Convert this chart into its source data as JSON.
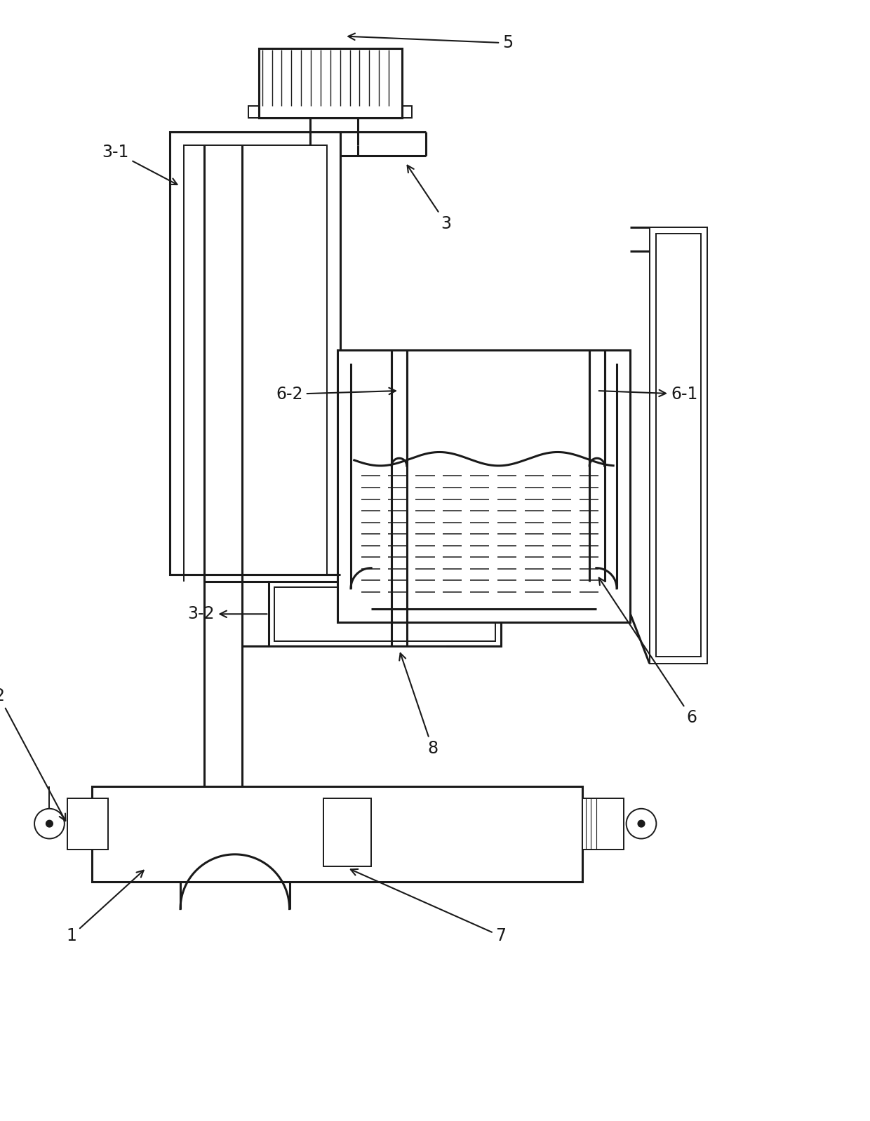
{
  "bg": "#ffffff",
  "lc": "#1a1a1a",
  "lw": 2.2,
  "lw2": 1.4,
  "fs": 17,
  "fig_w": 12.4,
  "fig_h": 15.98,
  "dpi": 100
}
